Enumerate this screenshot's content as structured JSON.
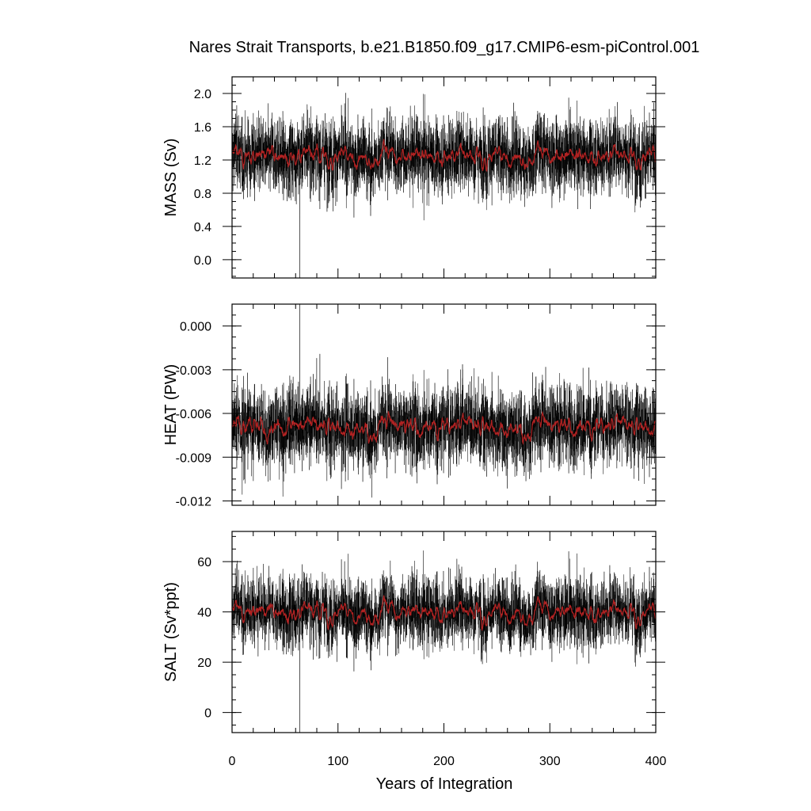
{
  "chart_data": {
    "type": "line",
    "title": "Nares Strait Transports, b.e21.B1850.f09_g17.CMIP6-esm-piControl.001",
    "xlabel": "Years of Integration",
    "xlim": [
      0,
      400
    ],
    "xticks": [
      "0",
      "100",
      "200",
      "300",
      "400"
    ],
    "series_colors": {
      "raw": "#000000",
      "smoothed": "#b22222"
    },
    "panels": [
      {
        "ylabel": "MASS (Sv)",
        "ylim": [
          -0.22,
          2.2
        ],
        "yticks": [
          "2.0",
          "1.6",
          "1.2",
          "0.8",
          "0.4",
          "0.0"
        ],
        "ytick_values": [
          2.0,
          1.6,
          1.2,
          0.8,
          0.4,
          0.0
        ],
        "mean": 1.28,
        "raw_std": 0.26,
        "smooth_std": 0.06,
        "min": -0.22,
        "max": 2.1,
        "min_year": 64
      },
      {
        "ylabel": "HEAT (PW)",
        "ylim": [
          -0.0123,
          0.0015
        ],
        "yticks": [
          "0.000",
          "-0.003",
          "-0.006",
          "-0.009",
          "-0.012"
        ],
        "ytick_values": [
          0.0,
          -0.003,
          -0.006,
          -0.009,
          -0.012
        ],
        "mean": -0.0068,
        "raw_std": 0.0016,
        "smooth_std": 0.0004,
        "min": -0.0123,
        "max": 0.0015,
        "max_year": 64
      },
      {
        "ylabel": "SALT (Sv*ppt)",
        "ylim": [
          -8,
          72
        ],
        "yticks": [
          "60",
          "40",
          "20",
          "0"
        ],
        "ytick_values": [
          60,
          40,
          20,
          0
        ],
        "mean": 41,
        "raw_std": 8,
        "smooth_std": 2.2,
        "min": -8,
        "max": 70,
        "min_year": 64
      }
    ]
  }
}
